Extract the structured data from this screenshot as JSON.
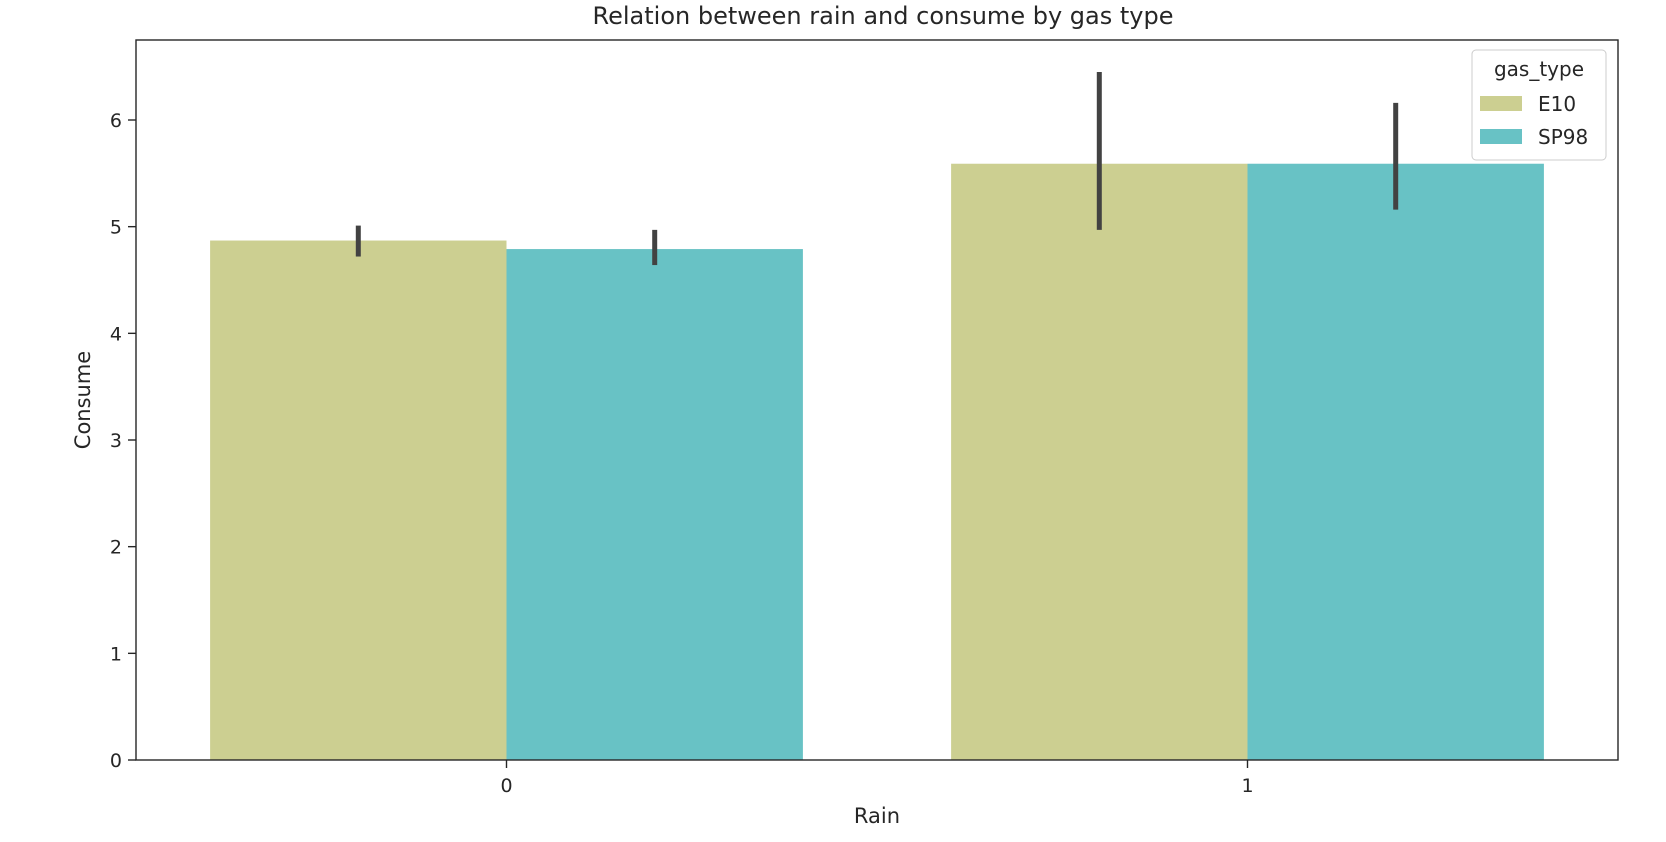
{
  "chart_data": {
    "type": "bar",
    "title": "Relation between rain and consume by gas type",
    "xlabel": "Rain",
    "ylabel": "Consume",
    "categories": [
      "0",
      "1"
    ],
    "ylim": [
      0,
      6.75
    ],
    "yticks": [
      0,
      1,
      2,
      3,
      4,
      5,
      6
    ],
    "series": [
      {
        "name": "E10",
        "color": "#cccf91",
        "values": [
          4.87,
          5.59
        ],
        "error_low": [
          4.72,
          4.97
        ],
        "error_high": [
          5.01,
          6.45
        ]
      },
      {
        "name": "SP98",
        "color": "#68c2c5",
        "values": [
          4.79,
          5.59
        ],
        "error_low": [
          4.64,
          5.16
        ],
        "error_high": [
          4.97,
          6.16
        ]
      }
    ],
    "legend": {
      "title": "gas_type",
      "placement": "top-right"
    },
    "grid": false
  }
}
